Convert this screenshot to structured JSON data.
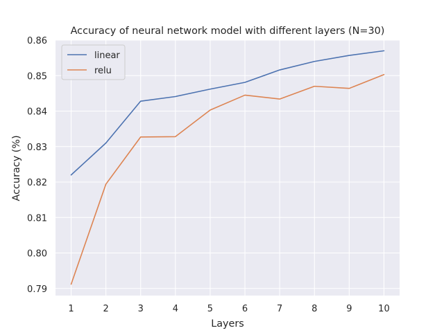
{
  "chart_data": {
    "type": "line",
    "title": "Accuracy of neural network model with different layers (N=30)",
    "xlabel": "Layers",
    "ylabel": "Accuracy (%)",
    "x": [
      1,
      2,
      3,
      4,
      5,
      6,
      7,
      8,
      9,
      10
    ],
    "xticks": [
      "1",
      "2",
      "3",
      "4",
      "5",
      "6",
      "7",
      "8",
      "9",
      "10"
    ],
    "yticks": [
      "0.79",
      "0.80",
      "0.81",
      "0.82",
      "0.83",
      "0.84",
      "0.85",
      "0.86"
    ],
    "xlim": [
      0.55,
      10.45
    ],
    "ylim": [
      0.788,
      0.86
    ],
    "grid": true,
    "legend_position": "top-left",
    "background_color": "#eaeaf2",
    "grid_color": "#ffffff",
    "series": [
      {
        "name": "linear",
        "color": "#4c72b0",
        "values": [
          0.822,
          0.831,
          0.8428,
          0.8441,
          0.8462,
          0.8481,
          0.8516,
          0.854,
          0.8557,
          0.857
        ]
      },
      {
        "name": "relu",
        "color": "#dd8452",
        "values": [
          0.7912,
          0.8194,
          0.8327,
          0.8328,
          0.8403,
          0.8445,
          0.8434,
          0.847,
          0.8464,
          0.8503
        ]
      }
    ]
  }
}
